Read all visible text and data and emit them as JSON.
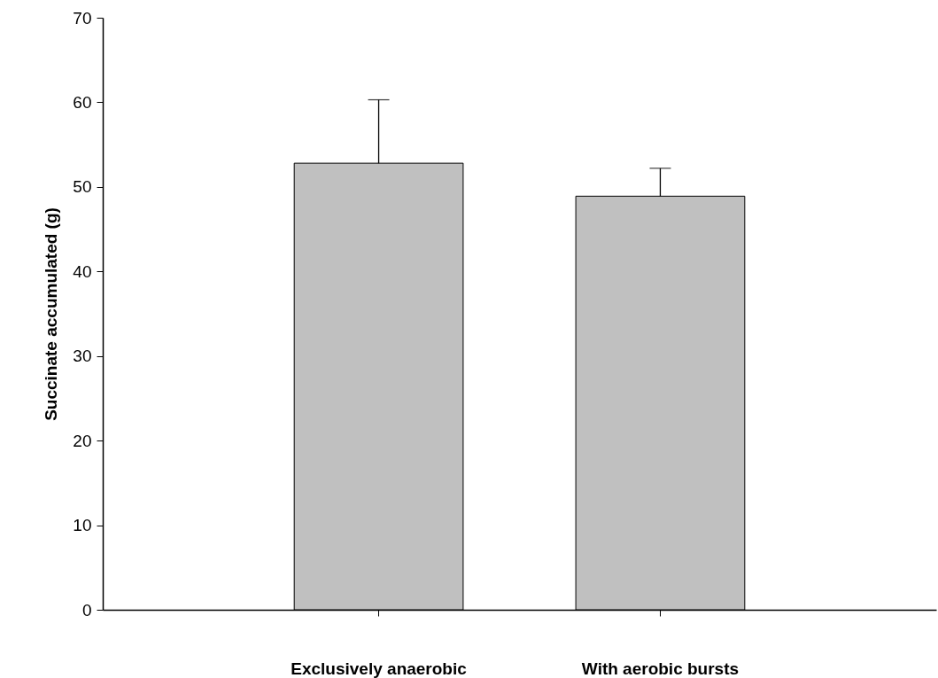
{
  "chart_data": {
    "type": "bar",
    "ylabel": "Succinate accumulated (g)",
    "categories": [
      "Exclusively anaerobic",
      "With aerobic bursts"
    ],
    "values": [
      52.8,
      48.9
    ],
    "errors": [
      7.5,
      3.3
    ],
    "color": "#c0c0c0",
    "ylim": [
      0,
      70
    ],
    "yticks": [
      0,
      10,
      20,
      30,
      40,
      50,
      60,
      70
    ],
    "grid": false
  }
}
